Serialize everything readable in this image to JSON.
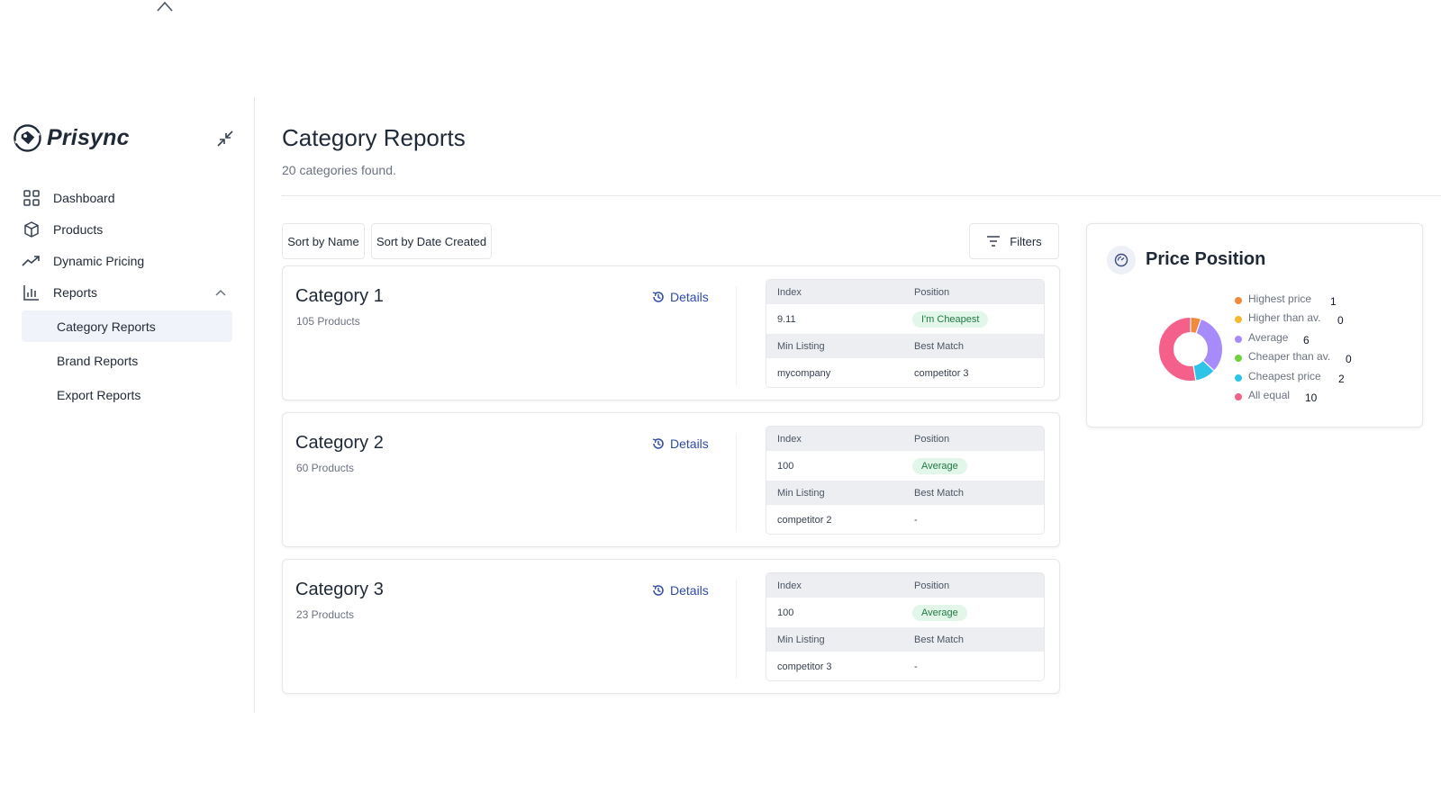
{
  "brand": {
    "name": "Prisync"
  },
  "sidebar": {
    "items": [
      {
        "label": "Dashboard",
        "icon": "grid-icon"
      },
      {
        "label": "Products",
        "icon": "box-icon"
      },
      {
        "label": "Dynamic Pricing",
        "icon": "trending-up-icon"
      },
      {
        "label": "Reports",
        "icon": "bar-chart-icon",
        "expanded": true
      }
    ],
    "report_items": [
      {
        "label": "Category Reports",
        "active": true
      },
      {
        "label": "Brand Reports",
        "active": false
      },
      {
        "label": "Export Reports",
        "active": false
      }
    ]
  },
  "page": {
    "title": "Category Reports",
    "subtitle": "20 categories found."
  },
  "toolbar": {
    "sort_name": "Sort by Name",
    "sort_date": "Sort by Date Created",
    "filters": "Filters"
  },
  "table_headers": {
    "index": "Index",
    "position": "Position",
    "min_listing": "Min Listing",
    "best_match": "Best Match"
  },
  "details_label": "Details",
  "categories": [
    {
      "name": "Category 1",
      "products": "105 Products",
      "index": "9.11",
      "position": "I'm Cheapest",
      "min_listing": "mycompany",
      "best_match": "competitor 3"
    },
    {
      "name": "Category 2",
      "products": "60 Products",
      "index": "100",
      "position": "Average",
      "min_listing": "competitor 2",
      "best_match": "-"
    },
    {
      "name": "Category 3",
      "products": "23 Products",
      "index": "100",
      "position": "Average",
      "min_listing": "competitor 3",
      "best_match": "-"
    }
  ],
  "price_position": {
    "title": "Price Position",
    "legend": [
      {
        "label": "Highest price",
        "value": "1",
        "color": "#f28a3c"
      },
      {
        "label": "Higher than av.",
        "value": "0",
        "color": "#f5b82e"
      },
      {
        "label": "Average",
        "value": "6",
        "color": "#a78bfa"
      },
      {
        "label": "Cheaper than av.",
        "value": "0",
        "color": "#6fd33f"
      },
      {
        "label": "Cheapest price",
        "value": "2",
        "color": "#2ec4e8"
      },
      {
        "label": "All equal",
        "value": "10",
        "color": "#f4608a"
      }
    ]
  },
  "colors": {
    "accent": "#2f4ba8",
    "active_nav_bg": "#f1f3fb",
    "badge_bg": "#e3f6ea",
    "badge_text": "#1f7a43"
  }
}
